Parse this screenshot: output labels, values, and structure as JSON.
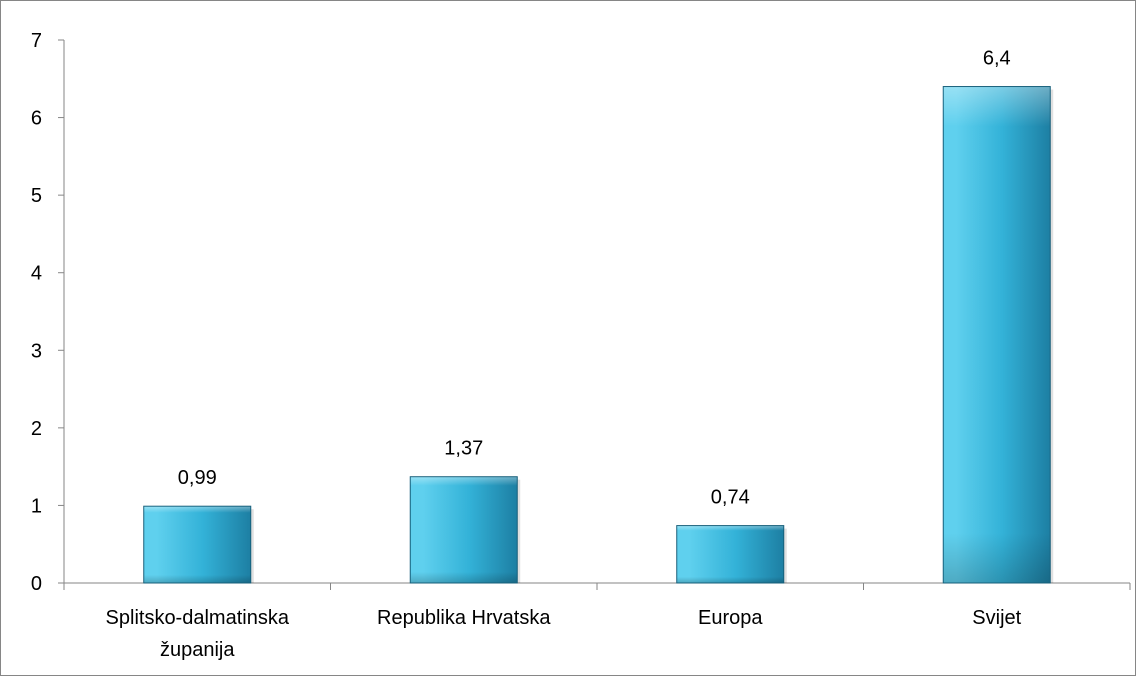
{
  "chart_data": {
    "type": "bar",
    "title": "",
    "xlabel": "",
    "ylabel": "",
    "ylim": [
      0,
      7
    ],
    "yticks": [
      "0",
      "1",
      "2",
      "3",
      "4",
      "5",
      "6",
      "7"
    ],
    "ytick_values": [
      0,
      1,
      2,
      3,
      4,
      5,
      6,
      7
    ],
    "categories": [
      [
        "Splitsko-dalmatinska",
        "županija"
      ],
      [
        "Republika Hrvatska"
      ],
      [
        "Europa"
      ],
      [
        "Svijet"
      ]
    ],
    "values": [
      0.99,
      1.37,
      0.74,
      6.4
    ],
    "value_labels": [
      "0,99",
      "1,37",
      "0,74",
      "6,4"
    ],
    "grid": false,
    "legend": "none",
    "colors": {
      "bar_light": "#5fd0ee",
      "bar_mid": "#33b2d8",
      "bar_dark": "#1d7fa3",
      "bar_edge": "#175f7a",
      "axis": "#868686",
      "frame": "#868686",
      "text": "#000000"
    }
  }
}
